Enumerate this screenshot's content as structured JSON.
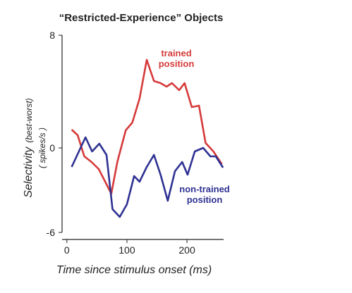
{
  "chart_data": {
    "type": "line",
    "title": "“Restricted-Experience” Objects",
    "x_label": "Time since stimulus onset (ms)",
    "y_label": "Selectivity",
    "y_label_note": "(best-worst)",
    "y_label_unit": "( spikes/s )",
    "xlim": [
      -8,
      261
    ],
    "xticks": [
      0,
      100,
      200
    ],
    "ylim": [
      -6,
      8
    ],
    "yticks": [
      -6,
      0,
      8
    ],
    "series": [
      {
        "name": "trained position",
        "color": "#d63a3a",
        "x": [
          8,
          18,
          29,
          41,
          53,
          65,
          74,
          84,
          98,
          109,
          121,
          133,
          145,
          156,
          166,
          175,
          187,
          196,
          208,
          220,
          231,
          244,
          258
        ],
        "values": [
          1.3,
          0.9,
          -0.6,
          -1,
          -1.5,
          -2.5,
          -3.25,
          -1,
          1.25,
          1.8,
          3.5,
          6.25,
          4.75,
          4.6,
          4.35,
          4.6,
          4.1,
          4.6,
          2.9,
          3,
          0.35,
          -0.25,
          -1.15
        ]
      },
      {
        "name": "non-trained position",
        "color": "#2e3192",
        "x": [
          8,
          20,
          31,
          42,
          54,
          66,
          76,
          88,
          100,
          112,
          121,
          133,
          145,
          156,
          168,
          180,
          192,
          201,
          213,
          227,
          239,
          248,
          260
        ],
        "values": [
          -1.35,
          -0.25,
          0.75,
          -0.25,
          0.3,
          -0.5,
          -4.35,
          -4.9,
          -4,
          -2,
          -2.4,
          -1.35,
          -0.5,
          -1.9,
          -3.75,
          -1.65,
          -1,
          -1.9,
          -0.25,
          0,
          -0.6,
          -0.6,
          -1.4
        ]
      }
    ],
    "annotations": [
      {
        "lines": [
          "trained",
          "position"
        ],
        "series": 0
      },
      {
        "lines": [
          "non-trained",
          "position"
        ],
        "series": 1
      }
    ]
  }
}
